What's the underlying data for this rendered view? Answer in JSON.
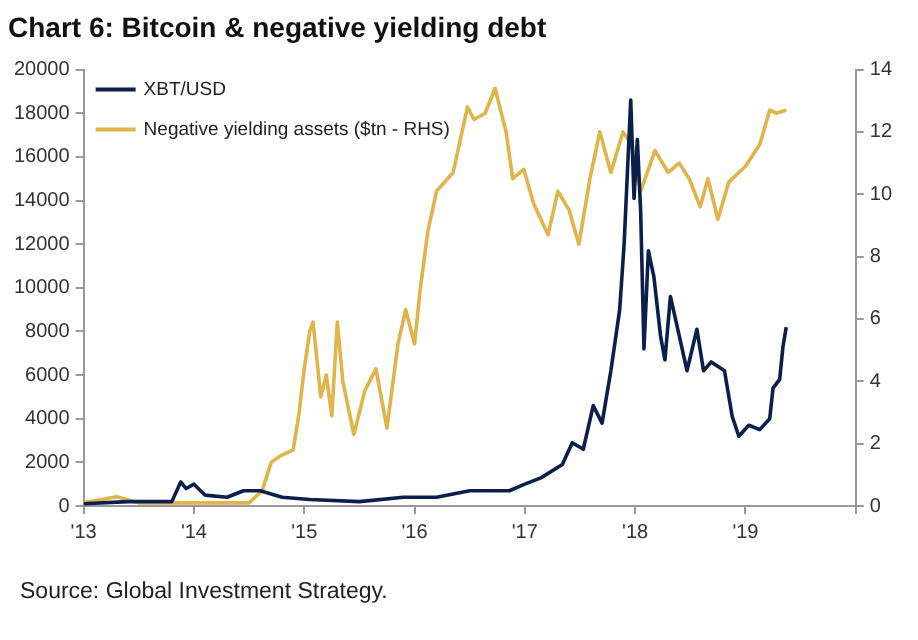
{
  "chart_data": {
    "type": "line",
    "title": "Chart 6: Bitcoin & negative yielding debt",
    "xlim": [
      2013,
      2020
    ],
    "xticks": [
      {
        "value": 2013,
        "label": "'13"
      },
      {
        "value": 2014,
        "label": "'14"
      },
      {
        "value": 2015,
        "label": "'15"
      },
      {
        "value": 2016,
        "label": "'16"
      },
      {
        "value": 2017,
        "label": "'17"
      },
      {
        "value": 2018,
        "label": "'18"
      },
      {
        "value": 2019,
        "label": "'19"
      },
      {
        "value": 2020,
        "label": null
      }
    ],
    "ylim": [
      0,
      20000
    ],
    "yticks": [
      0,
      2000,
      4000,
      6000,
      8000,
      10000,
      12000,
      14000,
      16000,
      18000,
      20000
    ],
    "y2lim": [
      0,
      14
    ],
    "y2ticks": [
      0,
      2,
      4,
      6,
      8,
      10,
      12,
      14
    ],
    "grid": false,
    "legend": "top left",
    "marker": "none",
    "line_style": "solid",
    "annotations": [
      "Source: Global Investment Strategy."
    ],
    "series": [
      {
        "name": "XBT/USD",
        "color": "#0b1f4d",
        "x": [
          2013.0,
          2013.4,
          2013.8,
          2013.88,
          2013.93,
          2014.0,
          2014.1,
          2014.3,
          2014.45,
          2014.6,
          2014.8,
          2015.05,
          2015.5,
          2015.9,
          2016.2,
          2016.5,
          2016.86,
          2017.0,
          2017.15,
          2017.34,
          2017.43,
          2017.53,
          2017.62,
          2017.7,
          2017.78,
          2017.86,
          2017.9,
          2017.96,
          2017.99,
          2018.02,
          2018.05,
          2018.08,
          2018.12,
          2018.17,
          2018.23,
          2018.27,
          2018.32,
          2018.4,
          2018.47,
          2018.56,
          2018.62,
          2018.69,
          2018.81,
          2018.88,
          2018.94,
          2019.03,
          2019.13,
          2019.22,
          2019.25,
          2019.31,
          2019.34,
          2019.37
        ],
        "values": [
          100,
          200,
          200,
          1100,
          800,
          1000,
          500,
          400,
          700,
          700,
          400,
          300,
          200,
          400,
          400,
          700,
          700,
          1000,
          1300,
          1900,
          2900,
          2600,
          4600,
          3800,
          6200,
          9000,
          12000,
          18600,
          14100,
          16800,
          13500,
          7200,
          11700,
          10500,
          7800,
          6700,
          9600,
          7800,
          6200,
          8100,
          6200,
          6600,
          6200,
          4100,
          3200,
          3700,
          3500,
          4000,
          5400,
          5800,
          7300,
          8200
        ]
      },
      {
        "name": "Negative yielding assets ($tn - RHS)",
        "color": "#e0b44a",
        "axis": "y2",
        "x": [
          2013.0,
          2013.3,
          2013.5,
          2014.5,
          2014.62,
          2014.7,
          2014.78,
          2014.9,
          2014.95,
          2015.0,
          2015.05,
          2015.08,
          2015.15,
          2015.2,
          2015.25,
          2015.3,
          2015.35,
          2015.45,
          2015.55,
          2015.65,
          2015.75,
          2015.85,
          2015.92,
          2016.0,
          2016.05,
          2016.12,
          2016.2,
          2016.35,
          2016.48,
          2016.54,
          2016.64,
          2016.73,
          2016.83,
          2016.89,
          2016.99,
          2017.08,
          2017.21,
          2017.3,
          2017.4,
          2017.49,
          2017.59,
          2017.68,
          2017.78,
          2017.89,
          2017.97,
          2018.05,
          2018.18,
          2018.3,
          2018.4,
          2018.49,
          2018.59,
          2018.66,
          2018.75,
          2018.85,
          2019.0,
          2019.13,
          2019.22,
          2019.28,
          2019.37
        ],
        "values": [
          0.1,
          0.3,
          0.1,
          0.1,
          0.5,
          1.4,
          1.6,
          1.8,
          2.9,
          4.4,
          5.6,
          5.9,
          3.5,
          4.2,
          2.9,
          5.9,
          4.0,
          2.3,
          3.7,
          4.4,
          2.5,
          5.2,
          6.3,
          5.2,
          6.9,
          8.8,
          10.1,
          10.7,
          12.8,
          12.4,
          12.6,
          13.4,
          12.0,
          10.5,
          10.8,
          9.7,
          8.7,
          10.1,
          9.5,
          8.4,
          10.5,
          12.0,
          10.7,
          12.0,
          11.6,
          10.1,
          11.4,
          10.7,
          11.0,
          10.5,
          9.6,
          10.5,
          9.2,
          10.4,
          10.9,
          11.6,
          12.7,
          12.6,
          12.7
        ]
      }
    ]
  }
}
